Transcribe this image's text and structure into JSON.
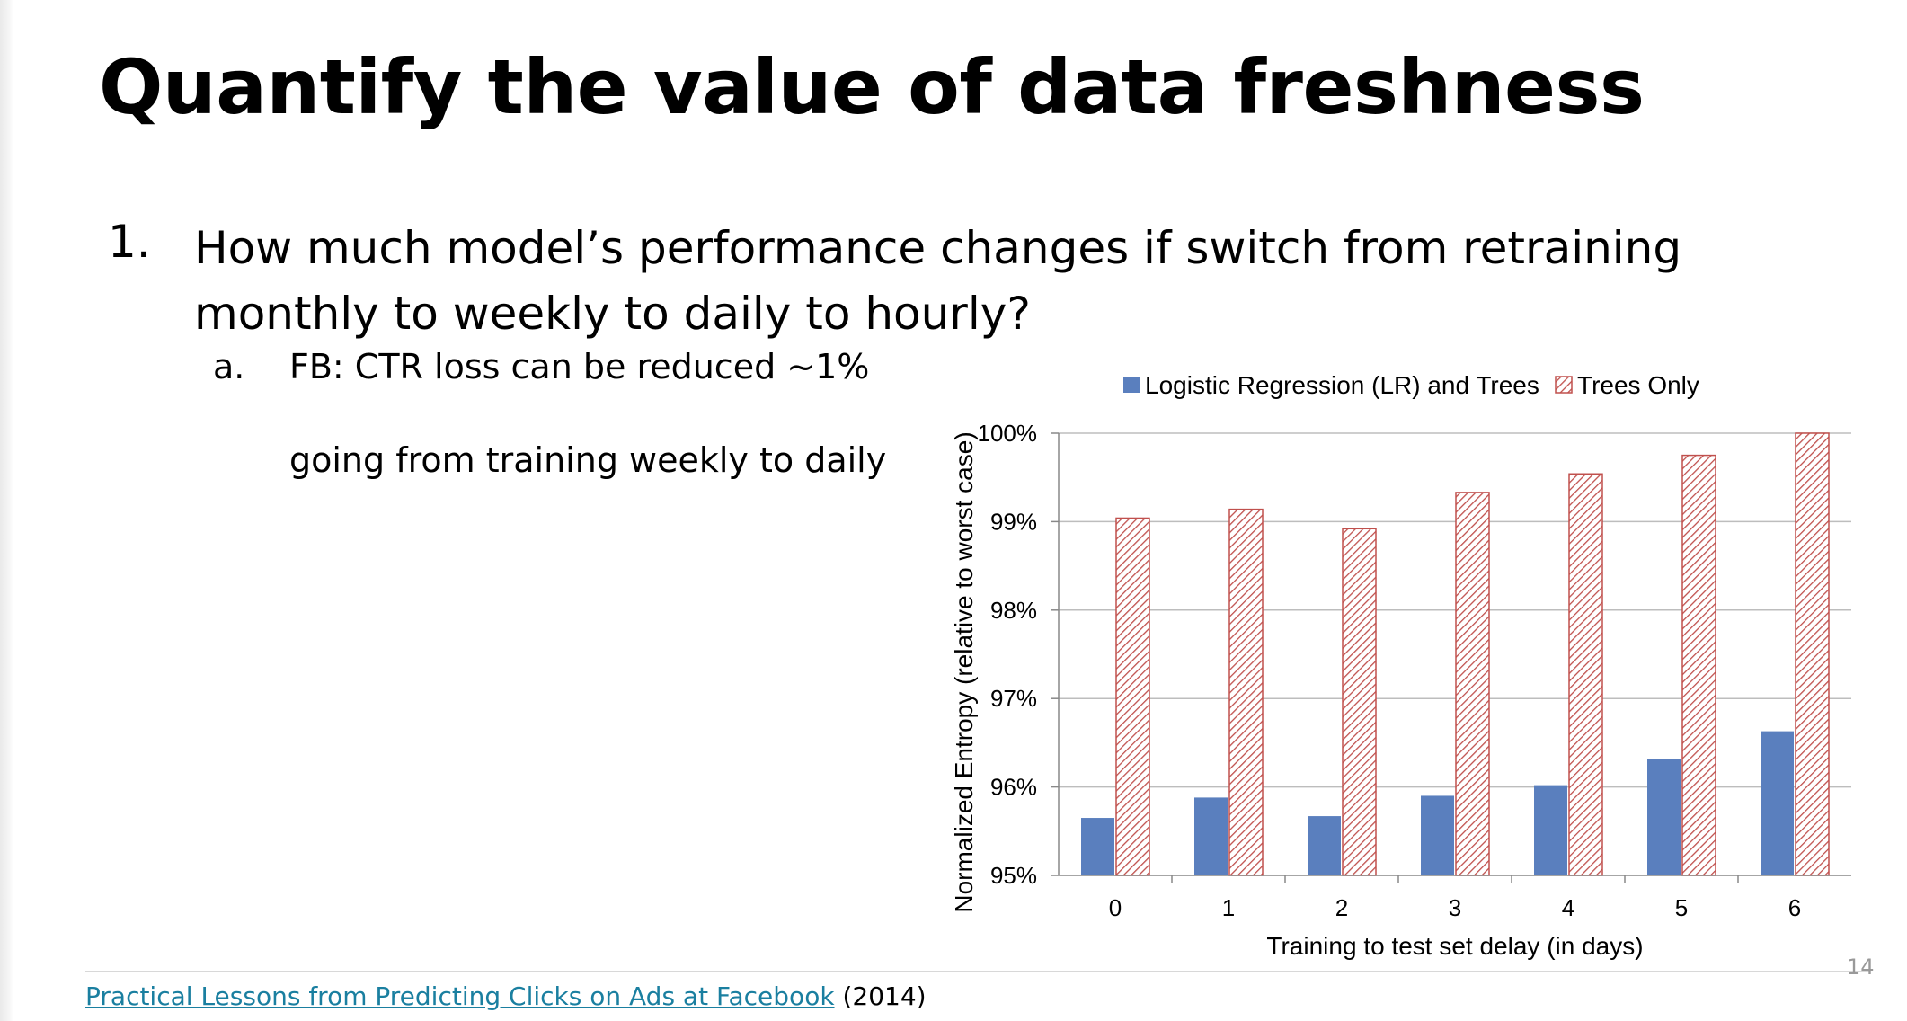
{
  "slide": {
    "title": "Quantify the value of data freshness",
    "bullet_1_num": "1.",
    "bullet_1_text": "How much model’s performance changes if switch from retraining monthly to weekly to daily to hourly?",
    "sub_a_num": "a.",
    "sub_a_line1": "FB: CTR loss can be reduced ~1%",
    "sub_a_line2": "going from training weekly to daily",
    "footer_link": "Practical Lessons from Predicting Clicks on Ads at Facebook",
    "footer_year": "(2014)",
    "page_number": "14"
  },
  "chart_data": {
    "type": "bar",
    "categories": [
      "0",
      "1",
      "2",
      "3",
      "4",
      "5",
      "6"
    ],
    "series": [
      {
        "name": "Logistic Regression (LR) and Trees",
        "values": [
          95.65,
          95.88,
          95.67,
          95.9,
          96.02,
          96.32,
          96.63
        ],
        "color": "#5a7fbe",
        "pattern": "solid"
      },
      {
        "name": "Trees Only",
        "values": [
          99.04,
          99.14,
          98.92,
          99.33,
          99.54,
          99.75,
          100.0
        ],
        "color": "#c0504d",
        "pattern": "diagonal-hatch"
      }
    ],
    "xlabel": "Training to test set delay (in days)",
    "ylabel": "Normalized Entropy (relative to worst case)",
    "ylim": [
      95,
      100
    ],
    "yticks": [
      "95%",
      "96%",
      "97%",
      "98%",
      "99%",
      "100%"
    ],
    "grid": true,
    "legend_position": "top"
  }
}
